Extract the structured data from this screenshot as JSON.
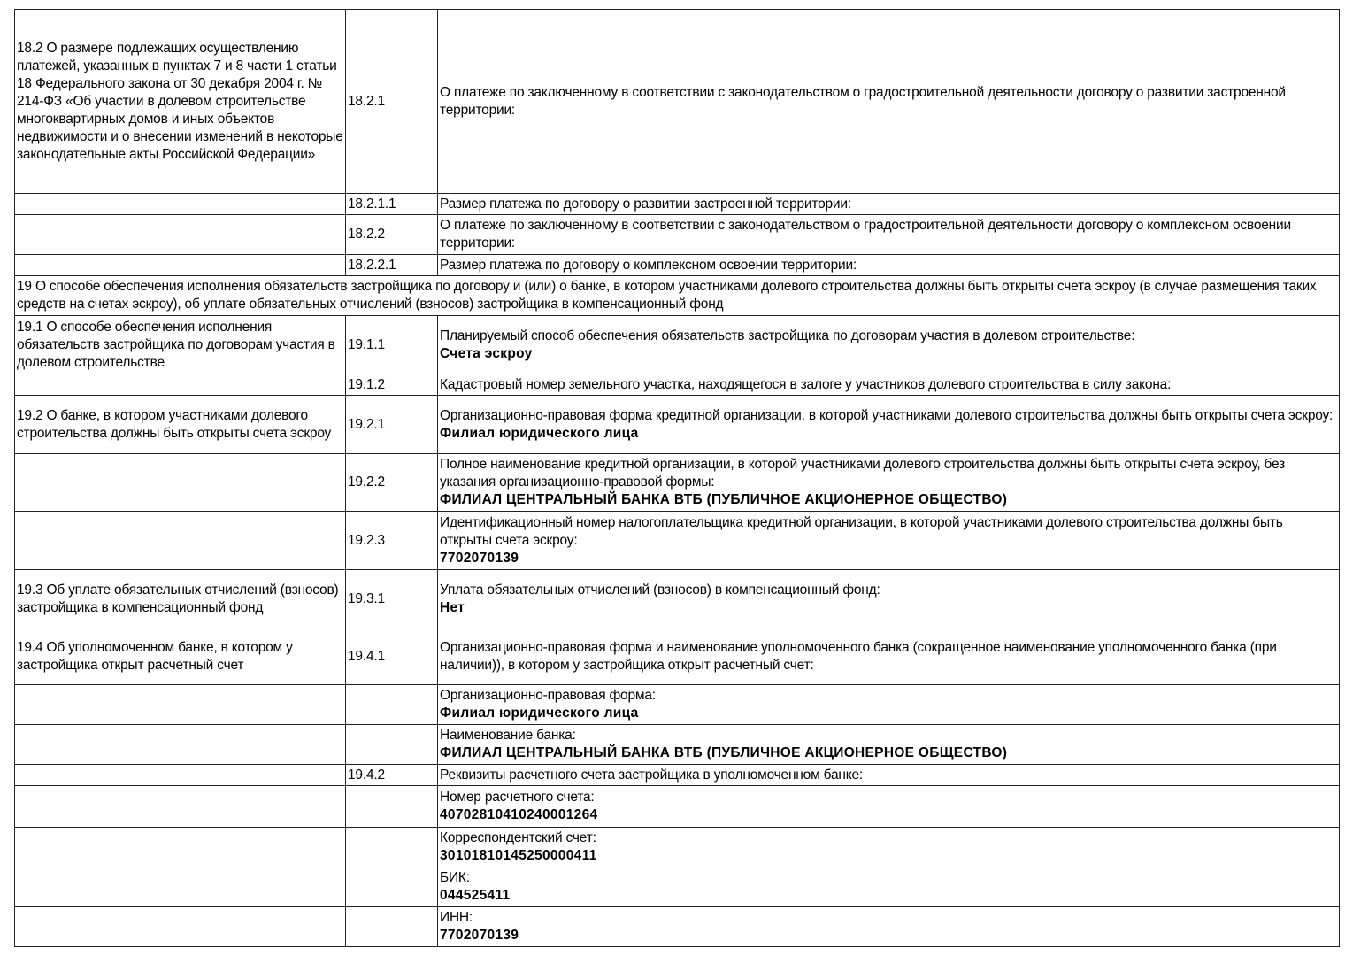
{
  "rows": [
    {
      "c1": "18.2 О размере подлежащих осуществлению платежей, указанных в пунктах 7 и 8 части 1 статьи 18 Федерального закона от 30 декабря 2004 г. № 214-ФЗ «Об участии в долевом строительстве многоквартирных домов и иных объектов недвижимости и о внесении изменений в некоторые законодательные акты Российской Федерации»",
      "c2": "18.2.1",
      "label": "О платеже по заключенному в соответствии с законодательством о градостроительной деятельности договору о развитии застроенной территории:",
      "value": ""
    },
    {
      "c1": "",
      "c2": "18.2.1.1",
      "label": "Размер платежа по договору о развитии застроенной территории:",
      "value": ""
    },
    {
      "c1": "",
      "c2": "18.2.2",
      "label": "О платеже по заключенному в соответствии с законодательством о градостроительной деятельности договору о комплексном освоении территории:",
      "value": ""
    },
    {
      "c1": "",
      "c2": "18.2.2.1",
      "label": "Размер платежа по договору о комплексном освоении территории:",
      "value": ""
    },
    {
      "full": "19 О способе обеспечения исполнения обязательств застройщика по договору и (или) о банке, в котором участниками долевого строительства должны быть открыты счета эскроу (в случае размещения таких средств на счетах эскроу), об уплате обязательных отчислений (взносов) застройщика в компенсационный фонд"
    },
    {
      "c1": "19.1 О способе обеспечения исполнения обязательств застройщика по договорам участия в долевом строительстве",
      "c2": "19.1.1",
      "label": "Планируемый способ обеспечения обязательств застройщика по договорам участия в долевом строительстве:",
      "value": "Счета эскроу"
    },
    {
      "c1": "",
      "c2": "19.1.2",
      "label": "Кадастровый номер земельного участка, находящегося в залоге у участников долевого строительства в силу закона:",
      "value": ""
    },
    {
      "c1": "19.2 О банке, в котором участниками долевого строительства должны быть открыты счета эскроу",
      "c2": "19.2.1",
      "label": "Организационно-правовая форма кредитной организации, в которой участниками долевого строительства должны быть открыты счета эскроу:",
      "value": "Филиал юридического лица"
    },
    {
      "c1": "",
      "c2": "19.2.2",
      "label": "Полное наименование кредитной организации, в которой участниками долевого строительства должны быть открыты счета эскроу, без указания организационно-правовой формы:",
      "value": "ФИЛИАЛ ЦЕНТРАЛЬНЫЙ БАНКА ВТБ (ПУБЛИЧНОЕ АКЦИОНЕРНОЕ ОБЩЕСТВО)"
    },
    {
      "c1": "",
      "c2": "19.2.3",
      "label": "Идентификационный номер налогоплательщика кредитной организации, в которой участниками долевого строительства должны быть открыты счета эскроу:",
      "value": "7702070139"
    },
    {
      "c1": "19.3 Об уплате обязательных отчислений (взносов) застройщика в компенсационный фонд",
      "c2": "19.3.1",
      "label": "Уплата обязательных отчислений (взносов) в компенсационный фонд:",
      "value": "Нет"
    },
    {
      "c1": "19.4 Об уполномоченном банке, в котором у застройщика открыт расчетный счет",
      "c2": "19.4.1",
      "label": "Организационно-правовая форма и наименование уполномоченного банка (сокращенное наименование уполномоченного банка (при наличии)), в котором у застройщика открыт расчетный счет:",
      "value": ""
    },
    {
      "c1": "",
      "c2": "",
      "label": "Организационно-правовая форма:",
      "value": "Филиал юридического лица"
    },
    {
      "c1": "",
      "c2": "",
      "label": "Наименование банка:",
      "value": "ФИЛИАЛ ЦЕНТРАЛЬНЫЙ БАНКА ВТБ (ПУБЛИЧНОЕ АКЦИОНЕРНОЕ ОБЩЕСТВО)"
    },
    {
      "c1": "",
      "c2": "19.4.2",
      "label": "Реквизиты расчетного счета застройщика в уполномоченном банке:",
      "value": ""
    },
    {
      "c1": "",
      "c2": "",
      "label": "Номер расчетного счета:",
      "value": "40702810410240001264"
    },
    {
      "c1": "",
      "c2": "",
      "label": "Корреспондентский счет:",
      "value": "30101810145250000411"
    },
    {
      "c1": "",
      "c2": "",
      "label": "БИК:",
      "value": "044525411"
    },
    {
      "c1": "",
      "c2": "",
      "label": "ИНН:",
      "value": "7702070139"
    }
  ]
}
